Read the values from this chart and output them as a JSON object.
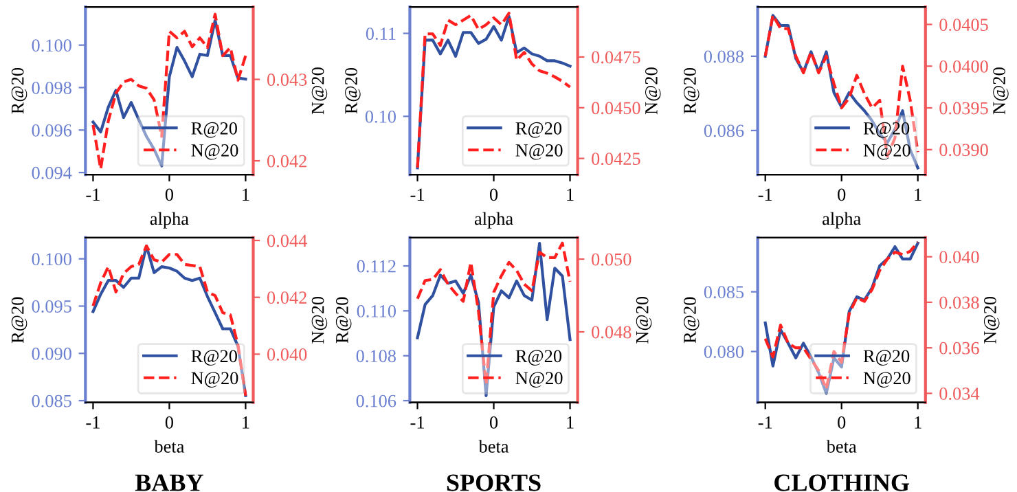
{
  "chart_data": [
    {
      "type": "line",
      "xlabel": "alpha",
      "ylabel": "R@20",
      "y2label": "N@20",
      "legend": "lower right",
      "grid": false,
      "x": [
        -1,
        -0.9,
        -0.8,
        -0.7,
        -0.6,
        -0.5,
        -0.4,
        -0.3,
        -0.2,
        -0.1,
        0,
        0.1,
        0.2,
        0.3,
        0.4,
        0.5,
        0.6,
        0.7,
        0.8,
        0.9,
        1
      ],
      "xlim": [
        -1.1,
        1.1
      ],
      "xticks": [
        -1,
        0,
        1
      ],
      "ylim": [
        0.0939,
        0.1018
      ],
      "yticks": [
        0.094,
        0.096,
        0.098,
        {
          "value": 0.1,
          "label": "0.100"
        }
      ],
      "y2lim": [
        0.04183,
        0.04389
      ],
      "y2ticks": [
        0.042,
        0.043
      ],
      "series": [
        {
          "name": "R@20",
          "color": "#3050a0",
          "line_style": "solid",
          "values": [
            0.09638,
            0.09591,
            0.09708,
            0.09787,
            0.09659,
            0.0973,
            0.09649,
            0.0957,
            0.0951,
            0.09431,
            0.09851,
            0.09989,
            0.09925,
            0.09851,
            0.09957,
            0.09951,
            0.10117,
            0.09951,
            0.09951,
            0.09845,
            0.0984
          ]
        },
        {
          "name": "N@20",
          "color": "#ff1f1f",
          "line_style": "dashed",
          "axis": "y2",
          "values": [
            0.04244,
            0.0419,
            0.04249,
            0.04283,
            0.04297,
            0.043,
            0.04292,
            0.04289,
            0.04275,
            0.0423,
            0.04359,
            0.04351,
            0.04359,
            0.0434,
            0.04351,
            0.04339,
            0.0438,
            0.04329,
            0.04339,
            0.04299,
            0.04329
          ]
        }
      ]
    },
    {
      "type": "line",
      "xlabel": "alpha",
      "ylabel": "R@20",
      "y2label": "N@20",
      "legend": "lower right",
      "grid": false,
      "x": [
        -1,
        -0.9,
        -0.8,
        -0.7,
        -0.6,
        -0.5,
        -0.4,
        -0.3,
        -0.2,
        -0.1,
        0,
        0.1,
        0.2,
        0.3,
        0.4,
        0.5,
        0.6,
        0.7,
        0.8,
        0.9,
        1
      ],
      "xlim": [
        -1.1,
        1.1
      ],
      "xticks": [
        -1,
        0,
        1
      ],
      "ylim": [
        0.09297,
        0.11319
      ],
      "yticks": [
        {
          "value": 0.1,
          "label": "0.10"
        },
        0.11
      ],
      "y2lim": [
        0.0417,
        0.04997
      ],
      "y2ticks": [
        0.0425,
        {
          "value": 0.045,
          "label": "0.0450"
        },
        0.0475
      ],
      "series": [
        {
          "name": "R@20",
          "color": "#3050a0",
          "line_style": "solid",
          "values": [
            0.09379,
            0.10918,
            0.10918,
            0.10753,
            0.10918,
            0.10725,
            0.11011,
            0.11011,
            0.10879,
            0.10929,
            0.11082,
            0.10918,
            0.11203,
            0.10769,
            0.10824,
            0.10753,
            0.10725,
            0.1067,
            0.1067,
            0.10643,
            0.10604
          ]
        },
        {
          "name": "N@20",
          "color": "#ff1f1f",
          "line_style": "dashed",
          "axis": "y2",
          "values": [
            0.04205,
            0.04864,
            0.04864,
            0.04807,
            0.04932,
            0.04909,
            0.04932,
            0.04955,
            0.04886,
            0.04909,
            0.04943,
            0.04909,
            0.04966,
            0.04734,
            0.04773,
            0.04716,
            0.04682,
            0.0467,
            0.04652,
            0.0463,
            0.04602
          ]
        }
      ]
    },
    {
      "type": "line",
      "xlabel": "alpha",
      "ylabel": "R@20",
      "y2label": "N@20",
      "legend": "lower right",
      "grid": false,
      "x": [
        -1,
        -0.9,
        -0.8,
        -0.7,
        -0.6,
        -0.5,
        -0.4,
        -0.3,
        -0.2,
        -0.1,
        0,
        0.1,
        0.2,
        0.3,
        0.4,
        0.5,
        0.6,
        0.7,
        0.8,
        0.9,
        1
      ],
      "xlim": [
        -1.1,
        1.1
      ],
      "xticks": [
        -1,
        0,
        1
      ],
      "ylim": [
        0.08481,
        0.08933
      ],
      "yticks": [
        0.086,
        0.088
      ],
      "y2lim": [
        0.0387,
        0.04071
      ],
      "y2ticks": [
        {
          "value": 0.039,
          "label": "0.0390"
        },
        0.0395,
        {
          "value": 0.04,
          "label": "0.0400"
        },
        0.0405
      ],
      "series": [
        {
          "name": "R@20",
          "color": "#3050a0",
          "line_style": "solid",
          "values": [
            0.088,
            0.0891,
            0.08883,
            0.08883,
            0.08794,
            0.08757,
            0.08812,
            0.08757,
            0.08812,
            0.08702,
            0.08663,
            0.08702,
            0.08675,
            0.08653,
            0.08626,
            0.08591,
            0.08567,
            0.08604,
            0.08653,
            0.08548,
            0.08499
          ]
        },
        {
          "name": "N@20",
          "color": "#ff1f1f",
          "line_style": "dashed",
          "axis": "y2",
          "values": [
            0.04012,
            0.04061,
            0.04045,
            0.04045,
            0.04012,
            0.03992,
            0.04017,
            0.03992,
            0.04012,
            0.03979,
            0.0395,
            0.03962,
            0.03989,
            0.03967,
            0.0395,
            0.03959,
            0.03892,
            0.03914,
            0.04,
            0.03959,
            0.03897
          ]
        }
      ]
    },
    {
      "type": "line",
      "title": "BABY",
      "xlabel": "beta",
      "ylabel": "R@20",
      "y2label": "N@20",
      "legend": "lower right",
      "grid": false,
      "x": [
        -1,
        -0.9,
        -0.8,
        -0.7,
        -0.6,
        -0.5,
        -0.4,
        -0.3,
        -0.2,
        -0.1,
        0,
        0.1,
        0.2,
        0.3,
        0.4,
        0.5,
        0.6,
        0.7,
        0.8,
        0.9,
        1
      ],
      "xlim": [
        -1.1,
        1.1
      ],
      "xticks": [
        -1,
        0,
        1
      ],
      "ylim": [
        0.08481,
        0.10224
      ],
      "yticks": [
        0.085,
        {
          "value": 0.09,
          "label": "0.090"
        },
        0.095,
        {
          "value": 0.1,
          "label": "0.100"
        }
      ],
      "y2lim": [
        0.0383,
        0.0441
      ],
      "y2ticks": [
        {
          "value": 0.04,
          "label": "0.040"
        },
        0.042,
        0.044
      ],
      "series": [
        {
          "name": "R@20",
          "color": "#3050a0",
          "line_style": "solid",
          "values": [
            0.09442,
            0.09625,
            0.09771,
            0.09771,
            0.09698,
            0.09796,
            0.09796,
            0.10136,
            0.09854,
            0.09917,
            0.09903,
            0.09869,
            0.09796,
            0.09771,
            0.09796,
            0.09601,
            0.09431,
            0.0926,
            0.0926,
            0.09075,
            0.08554
          ]
        },
        {
          "name": "N@20",
          "color": "#ff1f1f",
          "line_style": "dashed",
          "axis": "y2",
          "values": [
            0.0417,
            0.04251,
            0.04308,
            0.04219,
            0.04284,
            0.04308,
            0.04316,
            0.04381,
            0.04332,
            0.04324,
            0.04351,
            0.04351,
            0.04316,
            0.04312,
            0.04308,
            0.04219,
            0.04206,
            0.04146,
            0.04138,
            0.04032,
            0.03854
          ]
        }
      ]
    },
    {
      "type": "line",
      "title": "SPORTS",
      "xlabel": "beta",
      "ylabel": "R@20",
      "y2label": "N@20",
      "legend": "lower right",
      "grid": false,
      "x": [
        -1,
        -0.9,
        -0.8,
        -0.7,
        -0.6,
        -0.5,
        -0.4,
        -0.3,
        -0.2,
        -0.1,
        0,
        0.1,
        0.2,
        0.3,
        0.4,
        0.5,
        0.6,
        0.7,
        0.8,
        0.9,
        1
      ],
      "xlim": [
        -1.1,
        1.1
      ],
      "xticks": [
        -1,
        0,
        1
      ],
      "ylim": [
        0.10592,
        0.11326
      ],
      "yticks": [
        0.106,
        0.108,
        {
          "value": 0.11,
          "label": "0.110"
        },
        0.112
      ],
      "y2lim": [
        0.04606,
        0.05059
      ],
      "y2ticks": [
        0.048,
        {
          "value": 0.05,
          "label": "0.050"
        }
      ],
      "series": [
        {
          "name": "R@20",
          "color": "#3050a0",
          "line_style": "solid",
          "values": [
            0.1088,
            0.11028,
            0.11068,
            0.11159,
            0.11123,
            0.11133,
            0.11078,
            0.11159,
            0.11038,
            0.10622,
            0.11018,
            0.11089,
            0.11058,
            0.11133,
            0.11068,
            0.11048,
            0.11301,
            0.10961,
            0.1119,
            0.11155,
            0.10872
          ]
        },
        {
          "name": "N@20",
          "color": "#ff1f1f",
          "line_style": "dashed",
          "axis": "y2",
          "values": [
            0.04891,
            0.04941,
            0.04944,
            0.04971,
            0.04931,
            0.04906,
            0.04884,
            0.04991,
            0.04856,
            0.04656,
            0.04909,
            0.04954,
            0.04991,
            0.04969,
            0.04931,
            0.04913,
            0.05019,
            0.05004,
            0.05004,
            0.05044,
            0.04938
          ]
        }
      ]
    },
    {
      "type": "line",
      "title": "CLOTHING",
      "xlabel": "beta",
      "ylabel": "R@20",
      "y2label": "N@20",
      "legend": "lower right",
      "grid": false,
      "x": [
        -1,
        -0.9,
        -0.8,
        -0.7,
        -0.6,
        -0.5,
        -0.4,
        -0.3,
        -0.2,
        -0.1,
        0,
        0.1,
        0.2,
        0.3,
        0.4,
        0.5,
        0.6,
        0.7,
        0.8,
        0.9,
        1
      ],
      "xlim": [
        -1.1,
        1.1
      ],
      "xticks": [
        -1,
        0,
        1
      ],
      "ylim": [
        0.07573,
        0.08954
      ],
      "yticks": [
        {
          "value": 0.08,
          "label": "0.080"
        },
        0.085
      ],
      "y2lim": [
        0.0336,
        0.04084
      ],
      "y2ticks": [
        0.034,
        0.036,
        0.038,
        {
          "value": 0.04,
          "label": "0.040"
        }
      ],
      "series": [
        {
          "name": "R@20",
          "color": "#3050a0",
          "line_style": "solid",
          "values": [
            0.0824,
            0.07878,
            0.08183,
            0.08069,
            0.07947,
            0.08069,
            0.07954,
            0.07821,
            0.07649,
            0.07947,
            0.0787,
            0.08336,
            0.08458,
            0.08431,
            0.08534,
            0.08718,
            0.08775,
            0.08878,
            0.08775,
            0.08775,
            0.08908
          ]
        },
        {
          "name": "N@20",
          "color": "#ff1f1f",
          "line_style": "dashed",
          "axis": "y2",
          "values": [
            0.0364,
            0.0356,
            0.037,
            0.0362,
            0.036,
            0.036,
            0.0355,
            0.035,
            0.0342,
            0.03584,
            0.03536,
            0.0375,
            0.0382,
            0.03804,
            0.03856,
            0.0394,
            0.0399,
            0.0402,
            0.0401,
            0.04024,
            0.04064
          ]
        }
      ]
    }
  ]
}
